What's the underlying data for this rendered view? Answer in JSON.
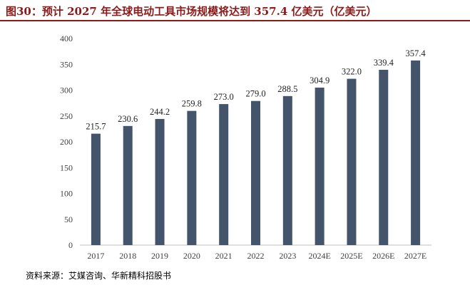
{
  "title": "图30：预计 2027 年全球电动工具市场规模将达到 357.4 亿美元（亿美元）",
  "source": "资料来源：艾媒咨询、华新精科招股书",
  "chart_data": {
    "type": "bar",
    "categories": [
      "2017",
      "2018",
      "2019",
      "2020",
      "2021",
      "2022",
      "2023",
      "2024E",
      "2025E",
      "2026E",
      "2027E"
    ],
    "values": [
      215.7,
      230.6,
      244.2,
      259.8,
      273.0,
      279.0,
      288.5,
      304.9,
      322.0,
      339.4,
      357.4
    ],
    "value_labels": [
      "215.7",
      "230.6",
      "244.2",
      "259.8",
      "273.0",
      "279.0",
      "288.5",
      "304.9",
      "322.0",
      "339.4",
      "357.4"
    ],
    "yticks": [
      "0",
      "50",
      "100",
      "150",
      "200",
      "250",
      "300",
      "350",
      "400"
    ],
    "ylim": [
      0,
      400
    ],
    "bar_color": "#44546a",
    "axis_color": "#bfbfbf",
    "grid": false,
    "legend": "none"
  }
}
